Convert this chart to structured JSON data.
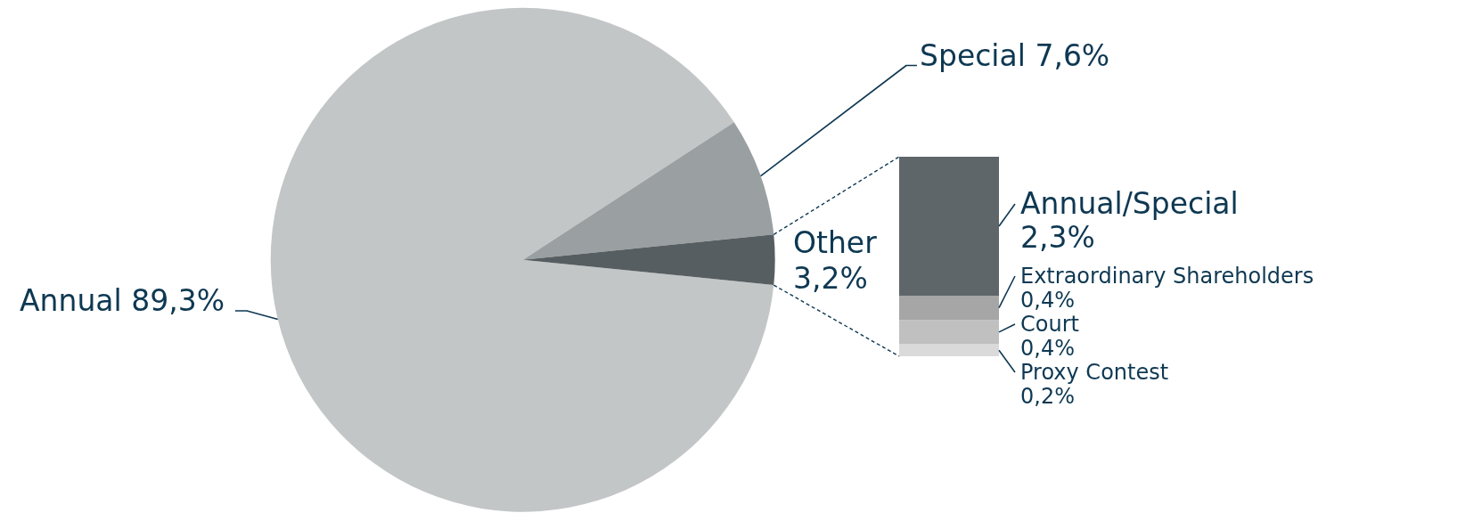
{
  "chart_data": [
    {
      "type": "pie",
      "categories": [
        "Annual",
        "Special",
        "Other"
      ],
      "values": [
        89.3,
        7.6,
        3.2
      ],
      "value_labels": [
        "89,3%",
        "7,6%",
        "3,2%"
      ],
      "colors": [
        "#c3c6c7",
        "#9aa0a2",
        "#575e61"
      ]
    },
    {
      "type": "bar",
      "stacked": true,
      "categories": [
        null
      ],
      "series": [
        {
          "name": "Proxy Contest",
          "color": "#dadada",
          "values": [
            0.2
          ],
          "value_labels": [
            "0,2%"
          ]
        },
        {
          "name": "Court",
          "color": "#c0c0c0",
          "values": [
            0.4
          ],
          "value_labels": [
            "0,4%"
          ]
        },
        {
          "name": "Extraordinary Shareholders",
          "color": "#a6a6a6",
          "values": [
            0.4
          ],
          "value_labels": [
            "0,4%"
          ]
        },
        {
          "name": "Annual/Special",
          "color": "#5f6669",
          "values": [
            2.3
          ],
          "value_labels": [
            "2,3%"
          ]
        }
      ]
    }
  ]
}
